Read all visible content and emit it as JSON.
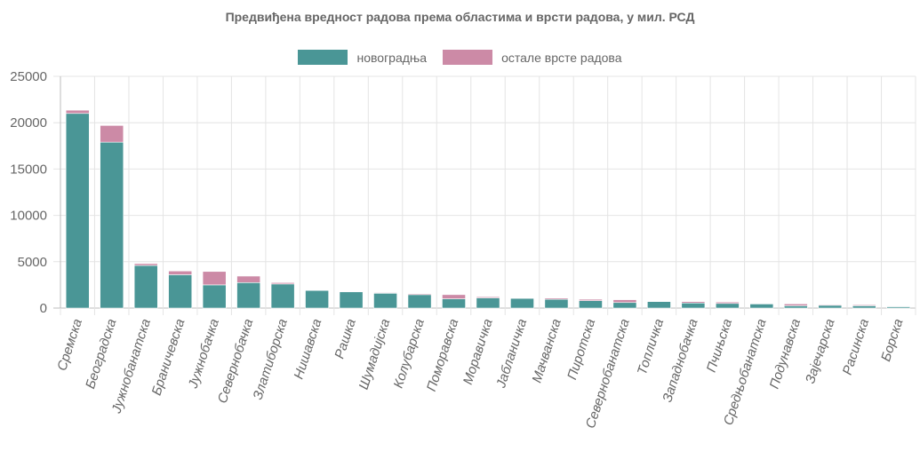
{
  "colors": {
    "new": "#4a9696",
    "other": "#cc8aa6",
    "grid": "#e4e4e4",
    "axis": "#bdbdbd",
    "text": "#666666"
  },
  "chart_data": {
    "type": "bar",
    "stacked": true,
    "title": "Предвиђена вредност радова према областима и врсти радова, у мил. РСД",
    "xlabel": "",
    "ylabel": "",
    "ylim": [
      0,
      25000
    ],
    "yticks": [
      0,
      5000,
      10000,
      15000,
      20000,
      25000
    ],
    "yticks_labels": [
      "0",
      "5000",
      "10000",
      "15000",
      "20000",
      "25000"
    ],
    "legend_position": "top-center",
    "categories": [
      "Сремска",
      "Београдска",
      "Јужнобанатска",
      "Браничевска",
      "Јужнобачка",
      "Севернобачка",
      "Златиборска",
      "Нишавска",
      "Рашка",
      "Шумадијска",
      "Колубарска",
      "Поморавска",
      "Моравичка",
      "Јабланичка",
      "Мачванска",
      "Пиротска",
      "Севернобанатска",
      "Топличка",
      "Западнобачка",
      "Пчињска",
      "Средњобанатска",
      "Подунавска",
      "Зајечарска",
      "Расинска",
      "Борска"
    ],
    "series": [
      {
        "name": "новоградња",
        "values": [
          21000,
          17900,
          4600,
          3600,
          2500,
          2750,
          2600,
          1900,
          1750,
          1600,
          1450,
          1000,
          1100,
          1050,
          950,
          800,
          600,
          700,
          550,
          500,
          450,
          250,
          300,
          250,
          150
        ]
      },
      {
        "name": "остале врсте радова",
        "values": [
          350,
          1800,
          200,
          400,
          1450,
          700,
          150,
          50,
          30,
          70,
          100,
          450,
          120,
          30,
          130,
          150,
          300,
          50,
          150,
          150,
          50,
          200,
          80,
          100,
          50
        ]
      }
    ]
  }
}
